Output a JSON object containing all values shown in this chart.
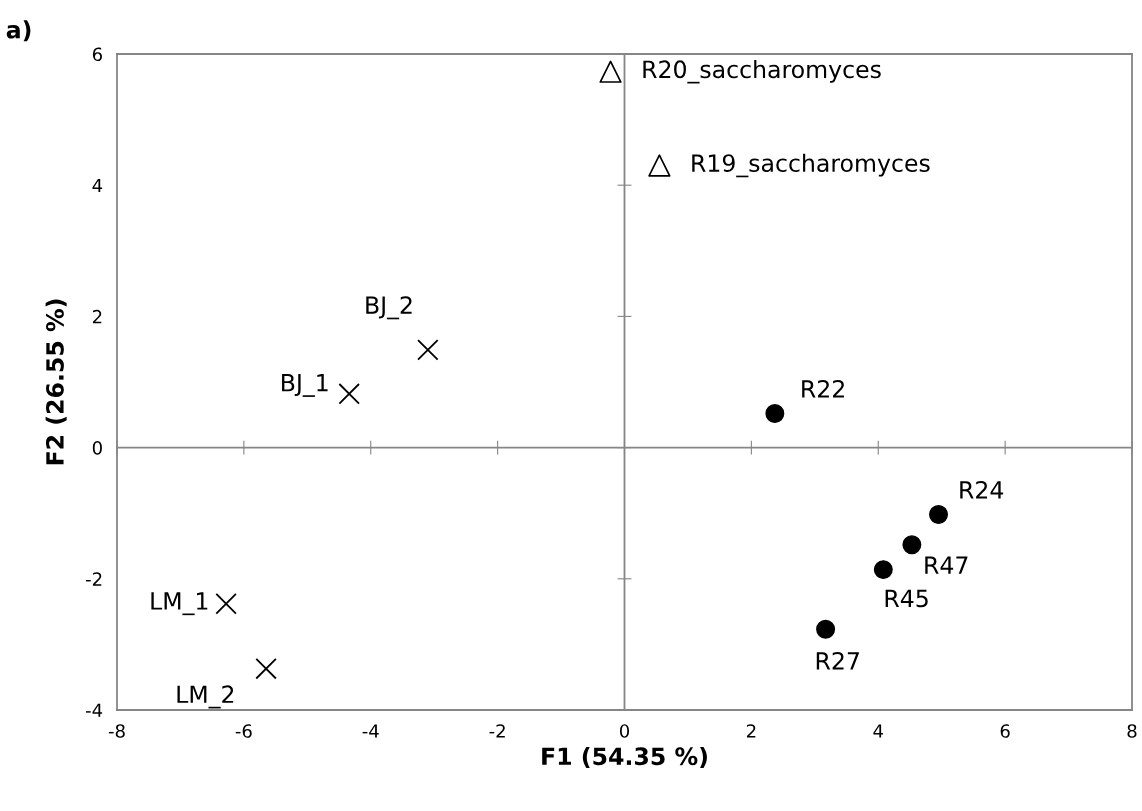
{
  "chart_data": {
    "type": "scatter",
    "title": "a)",
    "xlabel": "F1 (54.35 %)",
    "ylabel": "F2 (26.55 %)",
    "xlim": [
      -8,
      8
    ],
    "xticks": [
      -8,
      -6,
      -4,
      -2,
      0,
      2,
      4,
      6,
      8
    ],
    "ylim": [
      -4,
      6
    ],
    "yticks": [
      -4,
      -2,
      0,
      2,
      4,
      6
    ],
    "legend": false,
    "series": [
      {
        "color": "#000000",
        "marker": "triangle",
        "x": [
          -0.22,
          0.55
        ],
        "values": [
          5.73,
          4.3
        ]
      },
      {
        "color": "#000000",
        "marker": "cross",
        "x": [
          -3.1,
          -4.34,
          -6.28,
          -5.65
        ],
        "values": [
          1.49,
          0.82,
          -2.38,
          -3.37
        ]
      },
      {
        "color": "#000000",
        "marker": "circle",
        "x": [
          2.37,
          4.95,
          4.53,
          4.08,
          3.17
        ],
        "values": [
          0.52,
          -1.02,
          -1.48,
          -1.86,
          -2.77
        ]
      }
    ],
    "annotations": [
      {
        "text": "R20_saccharomyces",
        "x": -0.22,
        "y": 5.73
      },
      {
        "text": "R19_saccharomyces",
        "x": 0.55,
        "y": 4.3
      },
      {
        "text": "BJ_2",
        "x": -3.1,
        "y": 1.49
      },
      {
        "text": "BJ_1",
        "x": -4.34,
        "y": 0.82
      },
      {
        "text": "LM_1",
        "x": -6.28,
        "y": -2.38
      },
      {
        "text": "LM_2",
        "x": -5.65,
        "y": -3.37
      },
      {
        "text": "R22",
        "x": 2.37,
        "y": 0.52
      },
      {
        "text": "R24",
        "x": 4.95,
        "y": -1.02
      },
      {
        "text": "R47",
        "x": 4.53,
        "y": -1.48
      },
      {
        "text": "R45",
        "x": 4.08,
        "y": -1.86
      },
      {
        "text": "R27",
        "x": 3.17,
        "y": -2.77
      }
    ]
  }
}
